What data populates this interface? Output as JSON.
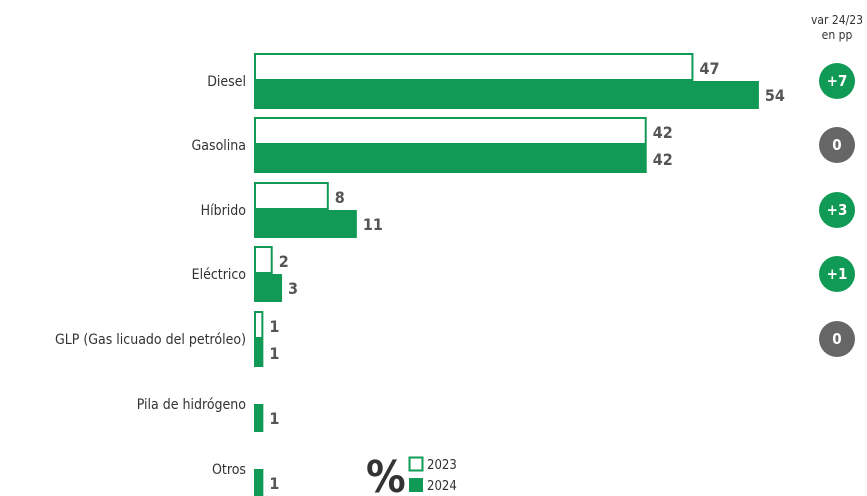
{
  "chart_data": {
    "type": "bar",
    "orientation": "horizontal",
    "unit": "%",
    "categories": [
      "Diesel",
      "Gasolina",
      "Híbrido",
      "Eléctrico",
      "GLP (Gas licuado del petróleo)",
      "Pila de hidrógeno",
      "Otros"
    ],
    "series": [
      {
        "name": "2023",
        "values": [
          47,
          42,
          8,
          2,
          1,
          null,
          null
        ],
        "style": "outline"
      },
      {
        "name": "2024",
        "values": [
          54,
          42,
          11,
          3,
          1,
          1,
          1
        ],
        "style": "filled"
      }
    ],
    "variation": {
      "header": [
        "var 24/23",
        "en pp"
      ],
      "values": [
        "+7",
        "0",
        "+3",
        "+1",
        "0",
        null,
        null
      ]
    },
    "legend_placement": "bottom",
    "grid": false
  },
  "colors": {
    "series_2024": "#119a55",
    "series_2023_outline": "#119a55",
    "positive_badge": "#119a55",
    "neutral_badge": "#666666",
    "value_text": "#555555"
  }
}
